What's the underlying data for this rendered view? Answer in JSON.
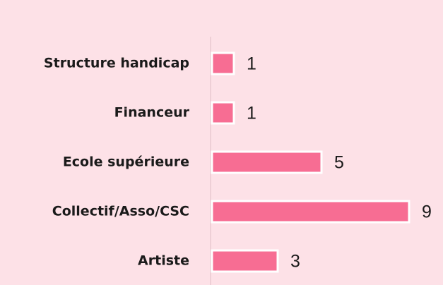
{
  "chart_data": {
    "type": "bar",
    "orientation": "horizontal",
    "categories": [
      "Structure handicap",
      "Financeur",
      "Ecole supérieure",
      "Collectif/Asso/CSC",
      "Artiste"
    ],
    "values": [
      1,
      1,
      5,
      9,
      3
    ],
    "color": "#f76d93",
    "xlim": [
      0,
      9
    ]
  }
}
